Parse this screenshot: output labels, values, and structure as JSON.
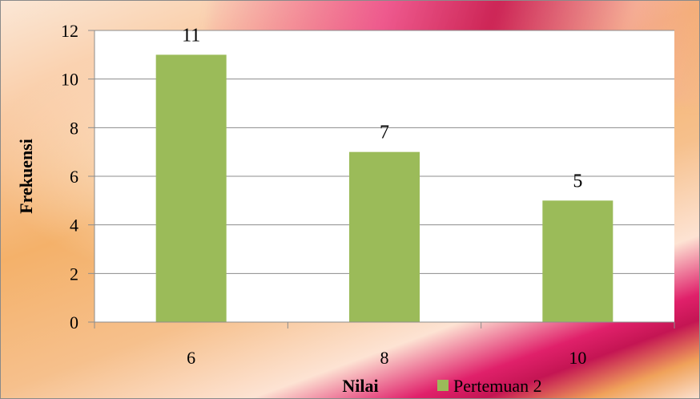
{
  "chart_data": {
    "type": "bar",
    "categories": [
      "6",
      "8",
      "10"
    ],
    "series": [
      {
        "name": "Pertemuan 2",
        "values": [
          11,
          7,
          5
        ]
      }
    ],
    "data_labels": [
      "11",
      "7",
      "5"
    ],
    "xlabel": "Nilai",
    "ylabel": "Frekuensi",
    "ylim": [
      0,
      12
    ],
    "yticks": [
      "0",
      "2",
      "4",
      "6",
      "8",
      "10",
      "12"
    ],
    "grid": true,
    "legend_placement": "bottom-right",
    "colors": {
      "bar": "#9bbb59",
      "grid": "#8c8c8c"
    }
  }
}
